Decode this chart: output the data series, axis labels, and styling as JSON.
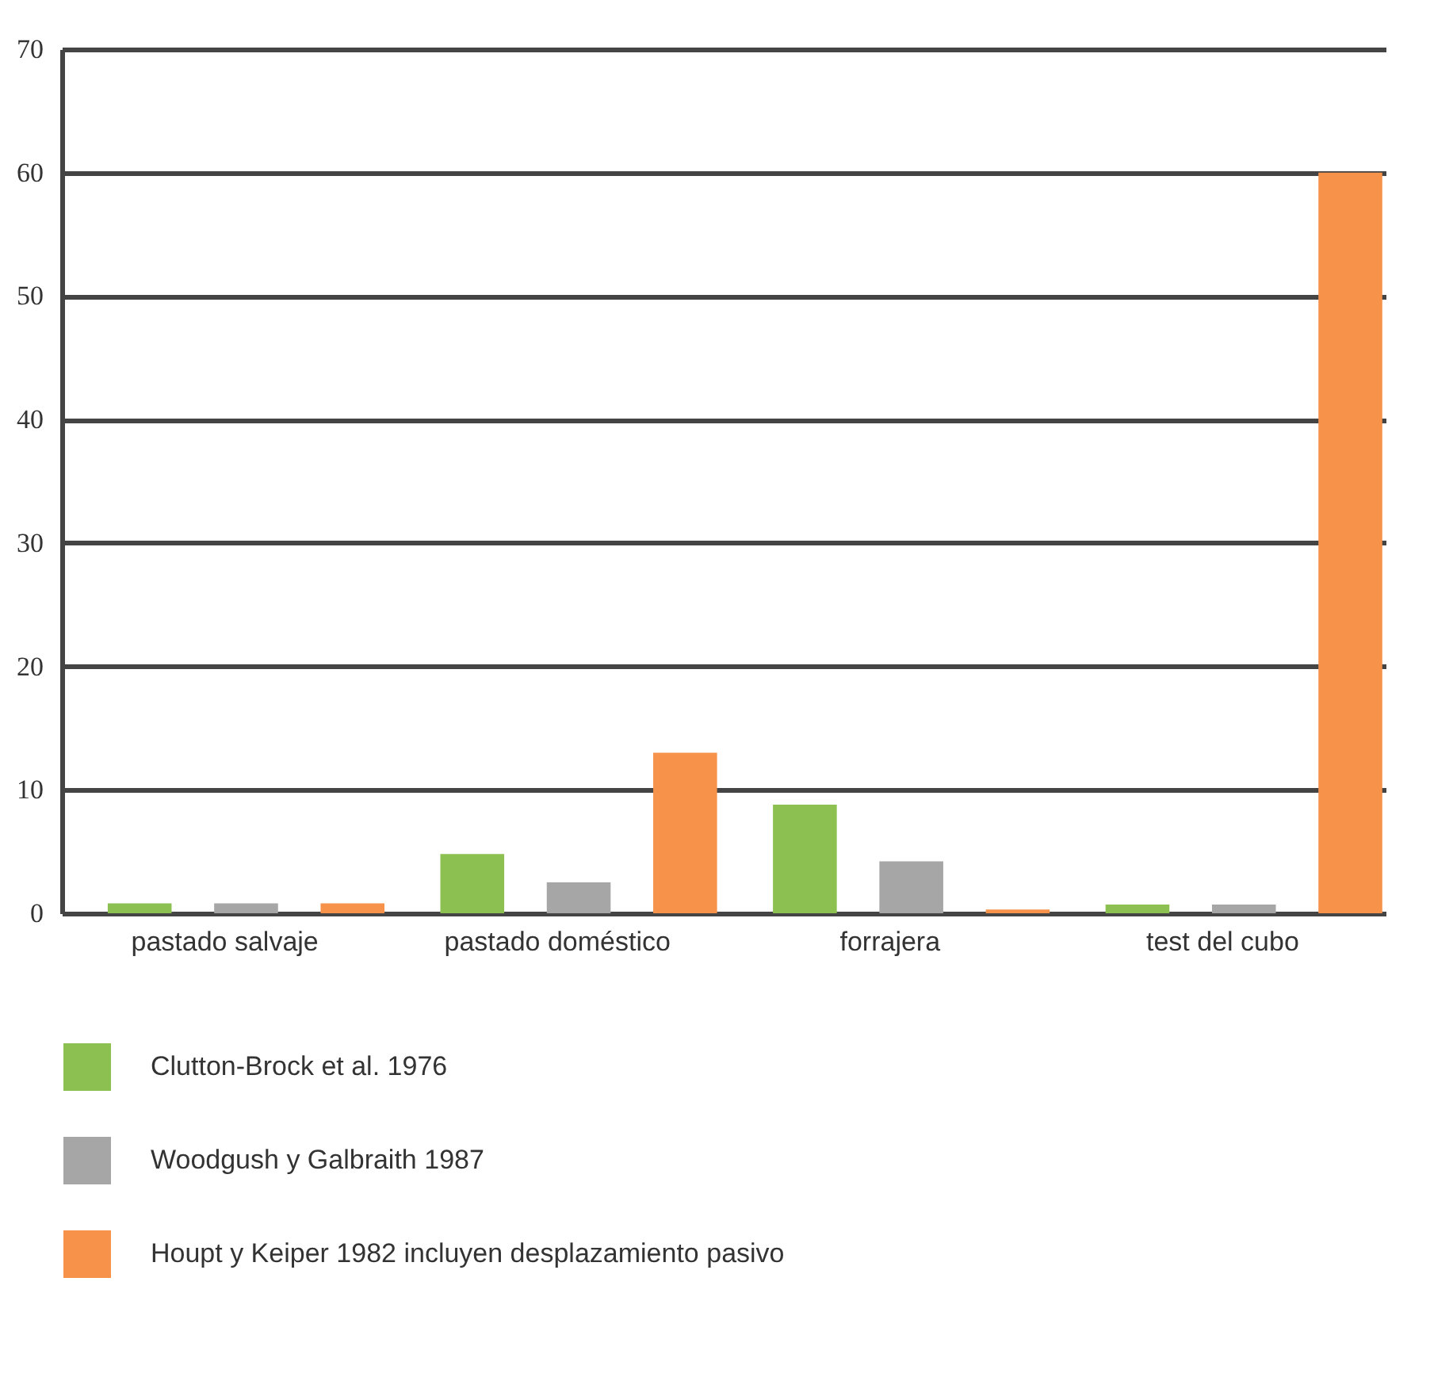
{
  "chart_data": {
    "type": "bar",
    "categories": [
      "pastado salvaje",
      "pastado doméstico",
      "forrajera",
      "test del cubo"
    ],
    "series": [
      {
        "name": "Clutton-Brock et al. 1976",
        "color": "#8cc152",
        "values": [
          0.8,
          4.8,
          8.8,
          0.7
        ]
      },
      {
        "name": "Woodgush y Galbraith 1987",
        "color": "#a6a6a6",
        "values": [
          0.8,
          2.5,
          4.2,
          0.7
        ]
      },
      {
        "name": "Houpt y Keiper 1982 incluyen desplazamiento pasivo",
        "color": "#f7924a",
        "values": [
          0.8,
          13,
          0.3,
          60
        ]
      }
    ],
    "ylim": [
      0,
      70
    ],
    "yticks": [
      0,
      10,
      20,
      30,
      40,
      50,
      60,
      70
    ],
    "grid": "y",
    "legend": "bottom left"
  }
}
